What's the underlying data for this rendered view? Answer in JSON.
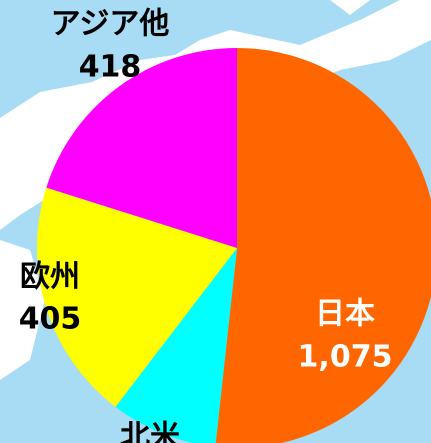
{
  "chart_data": {
    "type": "pie",
    "categories": [
      "日本",
      "北米",
      "欧州",
      "アジア他"
    ],
    "values": [
      1075,
      180,
      405,
      418
    ],
    "value_labels": [
      "1,075",
      null,
      "405",
      "418"
    ],
    "colors": [
      "#ff6600",
      "#00ffff",
      "#ffff00",
      "#ff00ff"
    ]
  }
}
